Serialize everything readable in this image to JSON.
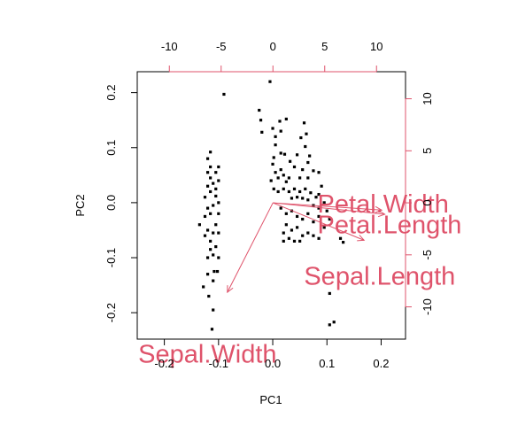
{
  "chart_data": {
    "type": "scatter",
    "title": "",
    "xlabel": "PC1",
    "ylabel": "PC2",
    "xlim": [
      -0.25,
      0.245
    ],
    "ylim": [
      -0.248,
      0.238
    ],
    "x_ticks": [
      -0.2,
      -0.1,
      0.0,
      0.1,
      0.2
    ],
    "x_tick_labels": [
      "-0.2",
      "-0.1",
      "0.0",
      "0.1",
      "0.2"
    ],
    "y_ticks": [
      -0.2,
      -0.1,
      0.0,
      0.1,
      0.2
    ],
    "y_tick_labels": [
      "-0.2",
      "-0.1",
      "0.0",
      "0.1",
      "0.2"
    ],
    "secondary_xlim": [
      -13.1,
      12.8
    ],
    "secondary_ylim": [
      -13.1,
      12.6
    ],
    "secondary_x_ticks": [
      -10,
      -5,
      0,
      5,
      10
    ],
    "secondary_x_tick_labels": [
      "-10",
      "-5",
      "0",
      "5",
      "10"
    ],
    "secondary_y_ticks": [
      -10,
      -5,
      0,
      5,
      10
    ],
    "secondary_y_tick_labels": [
      "-10",
      "-5",
      "0",
      "5",
      "10"
    ],
    "grid": false,
    "point_color": "#000000",
    "arrow_color": "#DF536B",
    "points": [
      [
        -0.09,
        0.197
      ],
      [
        -0.005,
        0.22
      ],
      [
        -0.025,
        0.168
      ],
      [
        -0.022,
        0.15
      ],
      [
        -0.02,
        0.128
      ],
      [
        0.013,
        0.148
      ],
      [
        0.025,
        0.152
      ],
      [
        0.058,
        0.145
      ],
      [
        0.062,
        0.125
      ],
      [
        0.052,
        0.118
      ],
      [
        0.06,
        0.102
      ],
      [
        0.068,
        0.085
      ],
      [
        0.065,
        0.073
      ],
      [
        0.0,
        0.135
      ],
      [
        0.005,
        0.12
      ],
      [
        0.015,
        0.13
      ],
      [
        0.005,
        0.105
      ],
      [
        0.015,
        0.09
      ],
      [
        0.002,
        0.082
      ],
      [
        0.022,
        0.088
      ],
      [
        0.032,
        0.075
      ],
      [
        0.045,
        0.087
      ],
      [
        0.04,
        0.065
      ],
      [
        0.055,
        0.06
      ],
      [
        0.05,
        0.045
      ],
      [
        0.075,
        0.058
      ],
      [
        0.065,
        0.045
      ],
      [
        0.085,
        0.055
      ],
      [
        0.09,
        0.03
      ],
      [
        0.085,
        0.015
      ],
      [
        0.0,
        0.07
      ],
      [
        0.005,
        0.055
      ],
      [
        0.01,
        0.045
      ],
      [
        0.015,
        0.06
      ],
      [
        0.02,
        0.05
      ],
      [
        0.025,
        0.038
      ],
      [
        0.03,
        0.045
      ],
      [
        -0.003,
        0.04
      ],
      [
        0.002,
        0.025
      ],
      [
        0.01,
        0.02
      ],
      [
        0.02,
        0.025
      ],
      [
        0.03,
        0.02
      ],
      [
        0.04,
        0.025
      ],
      [
        0.05,
        0.02
      ],
      [
        0.06,
        0.025
      ],
      [
        0.07,
        0.018
      ],
      [
        0.08,
        0.01
      ],
      [
        0.035,
        0.008
      ],
      [
        0.045,
        0.01
      ],
      [
        0.055,
        0.008
      ],
      [
        0.065,
        0.005
      ],
      [
        0.075,
        -0.005
      ],
      [
        0.085,
        -0.01
      ],
      [
        0.095,
        0.0
      ],
      [
        0.1,
        -0.015
      ],
      [
        0.015,
        -0.01
      ],
      [
        0.025,
        -0.02
      ],
      [
        0.035,
        -0.015
      ],
      [
        0.045,
        -0.025
      ],
      [
        0.055,
        -0.03
      ],
      [
        0.065,
        -0.02
      ],
      [
        0.075,
        -0.035
      ],
      [
        0.085,
        -0.025
      ],
      [
        0.095,
        -0.045
      ],
      [
        0.105,
        -0.03
      ],
      [
        0.025,
        -0.04
      ],
      [
        0.035,
        -0.05
      ],
      [
        0.045,
        -0.045
      ],
      [
        0.055,
        -0.06
      ],
      [
        0.065,
        -0.055
      ],
      [
        0.075,
        -0.06
      ],
      [
        0.085,
        -0.065
      ],
      [
        0.02,
        -0.055
      ],
      [
        0.03,
        -0.065
      ],
      [
        0.04,
        -0.07
      ],
      [
        0.05,
        -0.07
      ],
      [
        0.125,
        -0.065
      ],
      [
        0.13,
        -0.072
      ],
      [
        0.02,
        -0.07
      ],
      [
        0.105,
        -0.165
      ],
      [
        0.105,
        -0.222
      ],
      [
        0.113,
        -0.217
      ],
      [
        -0.12,
        0.08
      ],
      [
        -0.115,
        0.092
      ],
      [
        -0.115,
        0.065
      ],
      [
        -0.1,
        0.065
      ],
      [
        -0.105,
        0.055
      ],
      [
        -0.12,
        0.055
      ],
      [
        -0.115,
        0.045
      ],
      [
        -0.11,
        0.035
      ],
      [
        -0.12,
        0.03
      ],
      [
        -0.1,
        0.04
      ],
      [
        -0.105,
        0.025
      ],
      [
        -0.115,
        0.02
      ],
      [
        -0.125,
        0.01
      ],
      [
        -0.105,
        0.012
      ],
      [
        -0.1,
        0.0
      ],
      [
        -0.11,
        -0.005
      ],
      [
        -0.12,
        -0.01
      ],
      [
        -0.115,
        -0.02
      ],
      [
        -0.125,
        -0.025
      ],
      [
        -0.1,
        -0.02
      ],
      [
        -0.135,
        -0.04
      ],
      [
        -0.105,
        -0.04
      ],
      [
        -0.12,
        -0.05
      ],
      [
        -0.11,
        -0.055
      ],
      [
        -0.125,
        -0.06
      ],
      [
        -0.1,
        -0.055
      ],
      [
        -0.115,
        -0.07
      ],
      [
        -0.105,
        -0.08
      ],
      [
        -0.115,
        -0.085
      ],
      [
        -0.11,
        -0.095
      ],
      [
        -0.12,
        -0.1
      ],
      [
        -0.1,
        -0.1
      ],
      [
        -0.108,
        -0.125
      ],
      [
        -0.102,
        -0.125
      ],
      [
        -0.12,
        -0.13
      ],
      [
        -0.128,
        -0.153
      ],
      [
        -0.11,
        -0.142
      ],
      [
        -0.118,
        -0.17
      ],
      [
        -0.11,
        -0.195
      ],
      [
        -0.112,
        -0.23
      ]
    ],
    "arrows": [
      {
        "label": "Petal.Width",
        "x": 10.5,
        "y": -0.7,
        "label_x": 4.3,
        "label_y": -0.1
      },
      {
        "label": "Petal.Length",
        "x": 10.8,
        "y": -1.1,
        "label_x": 4.3,
        "label_y": -2.1
      },
      {
        "label": "Sepal.Length",
        "x": 8.8,
        "y": -3.6,
        "label_x": 3.0,
        "label_y": -7.0
      },
      {
        "label": "Sepal.Width",
        "x": -4.4,
        "y": -8.6,
        "label_x": -13.0,
        "label_y": -14.5
      }
    ]
  }
}
